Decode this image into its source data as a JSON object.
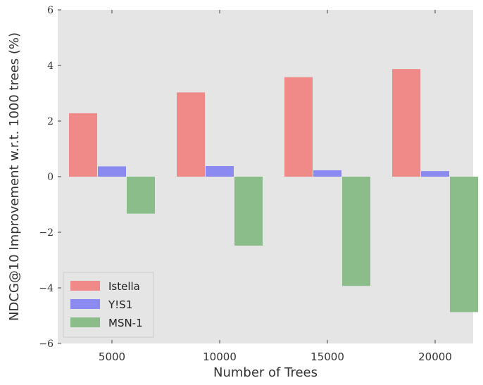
{
  "chart_data": {
    "type": "bar",
    "title": "",
    "xlabel": "Number of Trees",
    "ylabel": "NDCG@10 Improvement w.r.t. 1000 trees (%)",
    "categories": [
      "5000",
      "10000",
      "15000",
      "20000"
    ],
    "ylim": [
      -6,
      6
    ],
    "yticks": [
      -6,
      -4,
      -2,
      0,
      2,
      4,
      6
    ],
    "ytick_labels": [
      "−6",
      "−4",
      "−2",
      "0",
      "2",
      "4",
      "6"
    ],
    "grid": false,
    "legend_position": "lower-left",
    "series": [
      {
        "name": "Istella",
        "color": "#f08a88",
        "values": [
          2.28,
          3.03,
          3.58,
          3.87
        ]
      },
      {
        "name": "Y!S1",
        "color": "#8a8af0",
        "values": [
          0.37,
          0.38,
          0.23,
          0.2
        ]
      },
      {
        "name": "MSN-1",
        "color": "#8abd8a",
        "values": [
          -1.33,
          -2.48,
          -3.93,
          -4.87
        ]
      }
    ],
    "colors": {
      "plot_background": "#e5e5e5",
      "text": "#333333"
    }
  }
}
